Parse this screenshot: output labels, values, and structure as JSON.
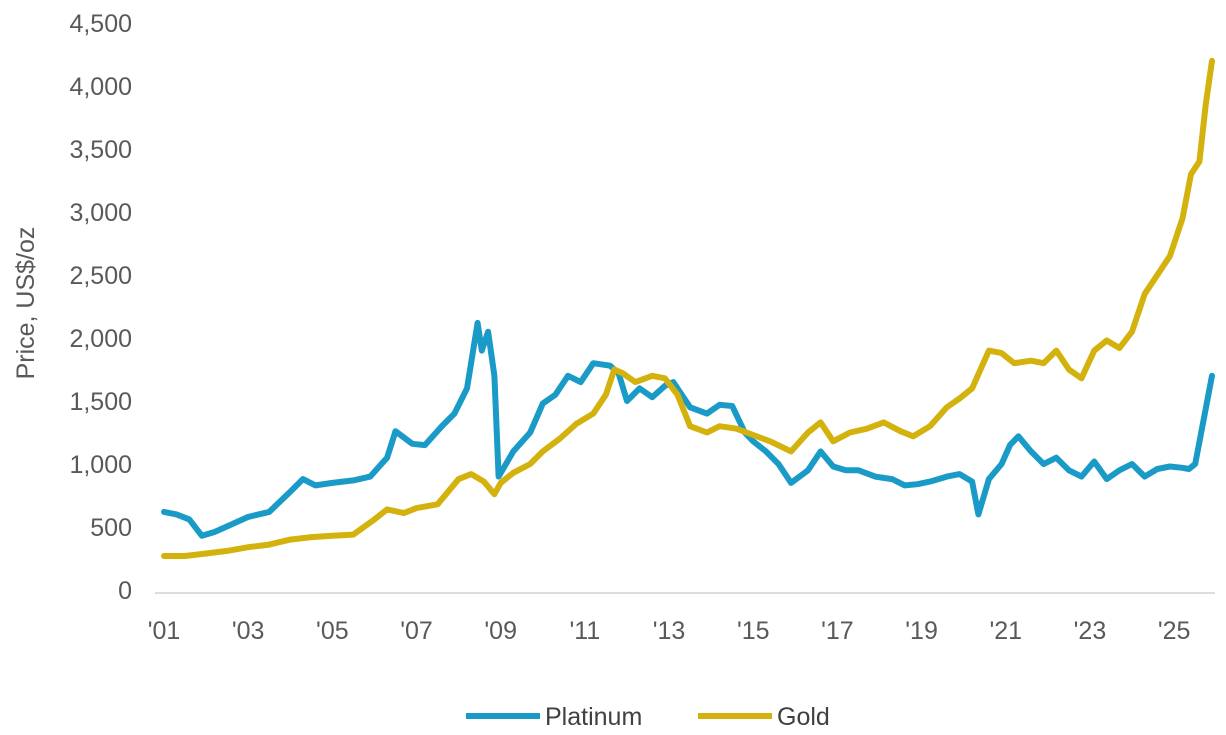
{
  "chart_data": {
    "type": "line",
    "ylabel": "Price, US$/oz",
    "xlabel": "",
    "ylim": [
      0,
      4500
    ],
    "xlim": [
      2001,
      2025.9
    ],
    "grid": false,
    "legend_position": "bottom-center",
    "y_ticks": [
      0,
      500,
      1000,
      1500,
      2000,
      2500,
      3000,
      3500,
      4000,
      4500
    ],
    "y_tick_labels": [
      "0",
      "500",
      "1,000",
      "1,500",
      "2,000",
      "2,500",
      "3,000",
      "3,500",
      "4,000",
      "4,500"
    ],
    "x_ticks": [
      2001,
      2003,
      2005,
      2007,
      2009,
      2011,
      2013,
      2015,
      2017,
      2019,
      2021,
      2023,
      2025
    ],
    "x_tick_labels": [
      "'01",
      "'03",
      "'05",
      "'07",
      "'09",
      "'11",
      "'13",
      "'15",
      "'17",
      "'19",
      "'21",
      "'23",
      "'25"
    ],
    "series": [
      {
        "name": "Platinum",
        "color": "#1a9bc7",
        "x": [
          2001.0,
          2001.3,
          2001.6,
          2001.9,
          2002.2,
          2002.6,
          2003.0,
          2003.5,
          2004.0,
          2004.3,
          2004.6,
          2005.0,
          2005.5,
          2005.9,
          2006.3,
          2006.5,
          2006.9,
          2007.2,
          2007.6,
          2007.9,
          2008.2,
          2008.45,
          2008.55,
          2008.7,
          2008.85,
          2008.95,
          2009.3,
          2009.7,
          2010.0,
          2010.3,
          2010.6,
          2010.9,
          2011.2,
          2011.6,
          2011.8,
          2012.0,
          2012.3,
          2012.6,
          2012.9,
          2013.1,
          2013.5,
          2013.9,
          2014.2,
          2014.5,
          2014.8,
          2015.0,
          2015.3,
          2015.6,
          2015.9,
          2016.3,
          2016.6,
          2016.9,
          2017.2,
          2017.5,
          2017.9,
          2018.3,
          2018.6,
          2018.9,
          2019.2,
          2019.6,
          2019.9,
          2020.2,
          2020.35,
          2020.6,
          2020.9,
          2021.1,
          2021.3,
          2021.6,
          2021.9,
          2022.2,
          2022.5,
          2022.8,
          2023.1,
          2023.4,
          2023.7,
          2024.0,
          2024.3,
          2024.6,
          2024.9,
          2025.2,
          2025.35,
          2025.5,
          2025.7,
          2025.9
        ],
        "values": [
          620,
          600,
          560,
          430,
          460,
          520,
          580,
          620,
          780,
          880,
          830,
          850,
          870,
          900,
          1050,
          1260,
          1160,
          1150,
          1300,
          1400,
          1600,
          2120,
          1900,
          2050,
          1700,
          900,
          1100,
          1250,
          1480,
          1550,
          1700,
          1650,
          1800,
          1780,
          1720,
          1500,
          1600,
          1530,
          1620,
          1650,
          1450,
          1400,
          1470,
          1460,
          1250,
          1180,
          1100,
          1000,
          850,
          950,
          1100,
          980,
          950,
          950,
          900,
          880,
          830,
          840,
          860,
          900,
          920,
          860,
          600,
          880,
          1000,
          1150,
          1220,
          1100,
          1000,
          1050,
          950,
          900,
          1020,
          880,
          950,
          1000,
          900,
          960,
          980,
          970,
          960,
          1000,
          1350,
          1700
        ]
      },
      {
        "name": "Gold",
        "color": "#d4b20e",
        "x": [
          2001.0,
          2001.5,
          2002.0,
          2002.5,
          2003.0,
          2003.5,
          2004.0,
          2004.5,
          2005.0,
          2005.5,
          2006.0,
          2006.3,
          2006.7,
          2007.0,
          2007.5,
          2008.0,
          2008.3,
          2008.6,
          2008.85,
          2009.0,
          2009.3,
          2009.7,
          2010.0,
          2010.4,
          2010.8,
          2011.2,
          2011.5,
          2011.7,
          2011.9,
          2012.2,
          2012.6,
          2012.9,
          2013.2,
          2013.5,
          2013.9,
          2014.2,
          2014.6,
          2015.0,
          2015.4,
          2015.9,
          2016.3,
          2016.6,
          2016.9,
          2017.3,
          2017.7,
          2018.1,
          2018.5,
          2018.8,
          2019.2,
          2019.6,
          2019.9,
          2020.2,
          2020.6,
          2020.9,
          2021.2,
          2021.6,
          2021.9,
          2022.2,
          2022.5,
          2022.8,
          2023.1,
          2023.4,
          2023.7,
          2024.0,
          2024.3,
          2024.6,
          2024.9,
          2025.2,
          2025.4,
          2025.6,
          2025.75,
          2025.9
        ],
        "values": [
          270,
          270,
          290,
          310,
          340,
          360,
          400,
          420,
          430,
          440,
          560,
          640,
          610,
          650,
          680,
          880,
          920,
          860,
          760,
          850,
          930,
          1000,
          1100,
          1200,
          1320,
          1400,
          1550,
          1750,
          1720,
          1650,
          1700,
          1680,
          1550,
          1300,
          1250,
          1300,
          1280,
          1230,
          1180,
          1100,
          1250,
          1330,
          1180,
          1250,
          1280,
          1330,
          1260,
          1220,
          1300,
          1450,
          1520,
          1600,
          1900,
          1880,
          1800,
          1820,
          1800,
          1900,
          1750,
          1680,
          1900,
          1980,
          1920,
          2050,
          2350,
          2500,
          2650,
          2950,
          3300,
          3400,
          3850,
          4200
        ]
      }
    ]
  }
}
